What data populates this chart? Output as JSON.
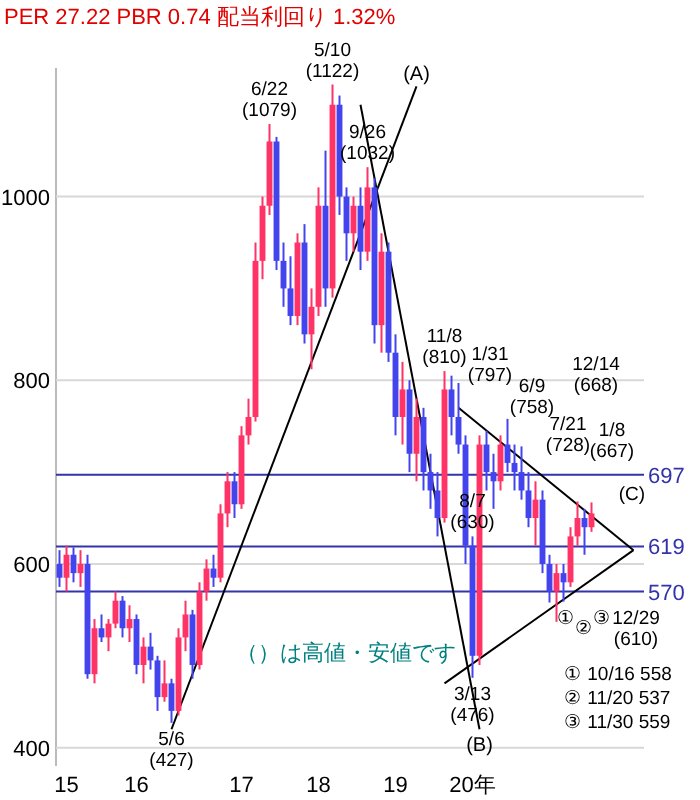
{
  "chart_data": {
    "type": "candlestick",
    "title": "PER 27.22 PBR 0.74 配当利回り 1.32%",
    "categories": [
      null,
      "15",
      null,
      null,
      null,
      null,
      null,
      null,
      null,
      null,
      null,
      "16",
      null,
      null,
      null,
      null,
      null,
      null,
      null,
      null,
      null,
      null,
      null,
      null,
      null,
      null,
      "17",
      null,
      null,
      null,
      null,
      null,
      null,
      null,
      null,
      null,
      null,
      "18",
      null,
      null,
      null,
      null,
      null,
      null,
      null,
      null,
      null,
      null,
      "19",
      null,
      null,
      null,
      null,
      null,
      null,
      null,
      null,
      null,
      null,
      "20年",
      null,
      null,
      null,
      null,
      null,
      null,
      null,
      null,
      null,
      null,
      null,
      null,
      null,
      null,
      null,
      null,
      null,
      null,
      null,
      null,
      null,
      null,
      null,
      null
    ],
    "ohlc": [
      [
        600,
        615,
        575,
        585
      ],
      [
        585,
        620,
        570,
        610
      ],
      [
        610,
        618,
        580,
        590
      ],
      [
        590,
        615,
        575,
        600
      ],
      [
        600,
        610,
        475,
        480
      ],
      [
        480,
        540,
        470,
        530
      ],
      [
        530,
        545,
        515,
        520
      ],
      [
        520,
        540,
        505,
        535
      ],
      [
        535,
        570,
        530,
        560
      ],
      [
        560,
        565,
        520,
        530
      ],
      [
        530,
        555,
        515,
        540
      ],
      [
        540,
        545,
        480,
        490
      ],
      [
        490,
        520,
        470,
        510
      ],
      [
        510,
        525,
        485,
        495
      ],
      [
        495,
        500,
        440,
        455
      ],
      [
        455,
        495,
        450,
        470
      ],
      [
        470,
        475,
        427,
        440
      ],
      [
        440,
        530,
        435,
        520
      ],
      [
        520,
        560,
        505,
        545
      ],
      [
        545,
        550,
        475,
        490
      ],
      [
        490,
        580,
        485,
        570
      ],
      [
        570,
        605,
        560,
        595
      ],
      [
        595,
        610,
        575,
        585
      ],
      [
        585,
        665,
        580,
        655
      ],
      [
        655,
        700,
        640,
        690
      ],
      [
        690,
        700,
        650,
        665
      ],
      [
        665,
        750,
        660,
        740
      ],
      [
        740,
        780,
        730,
        760
      ],
      [
        760,
        950,
        755,
        930
      ],
      [
        930,
        1000,
        910,
        990
      ],
      [
        990,
        1079,
        980,
        1060
      ],
      [
        1060,
        1065,
        920,
        930
      ],
      [
        930,
        950,
        880,
        900
      ],
      [
        900,
        935,
        860,
        870
      ],
      [
        870,
        960,
        860,
        950
      ],
      [
        950,
        970,
        840,
        850
      ],
      [
        850,
        900,
        812,
        880
      ],
      [
        880,
        1010,
        870,
        990
      ],
      [
        990,
        1050,
        880,
        900
      ],
      [
        900,
        1122,
        890,
        1100
      ],
      [
        1100,
        1110,
        980,
        1000
      ],
      [
        1000,
        1010,
        930,
        960
      ],
      [
        960,
        1000,
        940,
        990
      ],
      [
        990,
        1010,
        920,
        940
      ],
      [
        940,
        1032,
        930,
        1010
      ],
      [
        1010,
        1020,
        840,
        860
      ],
      [
        860,
        960,
        830,
        940
      ],
      [
        940,
        950,
        820,
        830
      ],
      [
        830,
        850,
        740,
        760
      ],
      [
        760,
        820,
        730,
        790
      ],
      [
        790,
        800,
        700,
        720
      ],
      [
        720,
        780,
        690,
        760
      ],
      [
        760,
        770,
        680,
        700
      ],
      [
        700,
        720,
        660,
        680
      ],
      [
        680,
        700,
        630,
        650
      ],
      [
        650,
        810,
        645,
        790
      ],
      [
        790,
        805,
        740,
        760
      ],
      [
        760,
        797,
        720,
        730
      ],
      [
        730,
        740,
        600,
        620
      ],
      [
        620,
        630,
        476,
        500
      ],
      [
        500,
        740,
        490,
        730
      ],
      [
        730,
        745,
        680,
        700
      ],
      [
        700,
        720,
        660,
        690
      ],
      [
        690,
        740,
        680,
        730
      ],
      [
        730,
        758,
        700,
        710
      ],
      [
        710,
        730,
        680,
        700
      ],
      [
        700,
        728,
        670,
        680
      ],
      [
        680,
        700,
        640,
        650
      ],
      [
        650,
        690,
        620,
        670
      ],
      [
        670,
        680,
        590,
        600
      ],
      [
        600,
        610,
        558,
        570
      ],
      [
        570,
        600,
        537,
        590
      ],
      [
        590,
        600,
        559,
        580
      ],
      [
        580,
        640,
        575,
        630
      ],
      [
        630,
        668,
        620,
        650
      ],
      [
        650,
        660,
        610,
        640
      ],
      [
        640,
        667,
        635,
        655
      ],
      null,
      null,
      null,
      null,
      null,
      null,
      null
    ],
    "colors": [
      "#4444ee",
      "#ff3366",
      "#4444ee",
      "#ff3366",
      "#4444ee",
      "#ff3366",
      "#4444ee",
      "#ff3366",
      "#ff3366",
      "#4444ee",
      "#ff3366",
      "#4444ee",
      "#ff3366",
      "#4444ee",
      "#4444ee",
      "#ff3366",
      "#4444ee",
      "#ff3366",
      "#ff3366",
      "#4444ee",
      "#ff3366",
      "#ff3366",
      "#4444ee",
      "#ff3366",
      "#ff3366",
      "#4444ee",
      "#ff3366",
      "#ff3366",
      "#ff3366",
      "#ff3366",
      "#ff3366",
      "#4444ee",
      "#4444ee",
      "#4444ee",
      "#ff3366",
      "#4444ee",
      "#ff3366",
      "#ff3366",
      "#4444ee",
      "#ff3366",
      "#4444ee",
      "#4444ee",
      "#ff3366",
      "#4444ee",
      "#ff3366",
      "#4444ee",
      "#ff3366",
      "#4444ee",
      "#4444ee",
      "#ff3366",
      "#4444ee",
      "#ff3366",
      "#4444ee",
      "#4444ee",
      "#4444ee",
      "#ff3366",
      "#4444ee",
      "#4444ee",
      "#4444ee",
      "#4444ee",
      "#ff3366",
      "#4444ee",
      "#4444ee",
      "#ff3366",
      "#4444ee",
      "#4444ee",
      "#4444ee",
      "#4444ee",
      "#ff3366",
      "#4444ee",
      "#4444ee",
      "#ff3366",
      "#4444ee",
      "#ff3366",
      "#ff3366",
      "#4444ee",
      "#ff3366",
      null,
      null,
      null,
      null,
      null,
      null,
      null
    ],
    "ylim": [
      380,
      1140
    ],
    "yticks": [
      400,
      600,
      800,
      1000
    ],
    "grid": "y",
    "series": [
      {
        "type": "line",
        "name": "(A)",
        "color": "#000000",
        "values": [
          null,
          null,
          null,
          null,
          null,
          null,
          null,
          null,
          null,
          null,
          null,
          null,
          null,
          null,
          null,
          null,
          420,
          null,
          null,
          null,
          null,
          null,
          null,
          null,
          null,
          null,
          null,
          null,
          null,
          null,
          null,
          null,
          null,
          null,
          null,
          null,
          null,
          null,
          null,
          null,
          null,
          null,
          null,
          null,
          null,
          null,
          null,
          null,
          null,
          null,
          null,
          1120,
          null,
          null,
          null,
          null,
          null,
          null,
          null,
          null,
          null,
          null,
          null,
          null,
          null,
          null,
          null,
          null,
          null,
          null,
          null,
          null,
          null,
          null,
          null,
          null,
          null,
          null,
          null,
          null,
          null,
          null,
          null,
          null
        ]
      },
      {
        "type": "line",
        "name": "(B)",
        "color": "#000000",
        "values": [
          null,
          null,
          null,
          null,
          null,
          null,
          null,
          null,
          null,
          null,
          null,
          null,
          null,
          null,
          null,
          null,
          null,
          null,
          null,
          null,
          null,
          null,
          null,
          null,
          null,
          null,
          null,
          null,
          null,
          null,
          null,
          null,
          null,
          null,
          null,
          null,
          null,
          null,
          null,
          null,
          null,
          null,
          null,
          1100,
          null,
          null,
          null,
          null,
          null,
          null,
          null,
          null,
          null,
          null,
          null,
          null,
          null,
          null,
          null,
          null,
          420,
          null,
          null,
          null,
          null,
          null,
          null,
          null,
          null,
          null,
          null,
          null,
          null,
          null,
          null,
          null,
          null,
          null,
          null,
          null,
          null,
          null,
          null,
          null
        ]
      },
      {
        "type": "line",
        "color": "#000000",
        "values": [
          null,
          null,
          null,
          null,
          null,
          null,
          null,
          null,
          null,
          null,
          null,
          null,
          null,
          null,
          null,
          null,
          null,
          null,
          null,
          null,
          null,
          null,
          null,
          null,
          null,
          null,
          null,
          null,
          null,
          null,
          null,
          null,
          null,
          null,
          null,
          null,
          null,
          null,
          null,
          null,
          null,
          null,
          null,
          null,
          null,
          null,
          null,
          null,
          null,
          null,
          null,
          null,
          null,
          null,
          null,
          null,
          null,
          770,
          null,
          null,
          null,
          null,
          null,
          null,
          null,
          null,
          null,
          null,
          null,
          null,
          null,
          null,
          null,
          null,
          null,
          null,
          null,
          null,
          null,
          null,
          null,
          null,
          615,
          null
        ]
      },
      {
        "type": "line",
        "color": "#000000",
        "values": [
          null,
          null,
          null,
          null,
          null,
          null,
          null,
          null,
          null,
          null,
          null,
          null,
          null,
          null,
          null,
          null,
          null,
          null,
          null,
          null,
          null,
          null,
          null,
          null,
          null,
          null,
          null,
          null,
          null,
          null,
          null,
          null,
          null,
          null,
          null,
          null,
          null,
          null,
          null,
          null,
          null,
          null,
          null,
          null,
          null,
          null,
          null,
          null,
          null,
          null,
          null,
          null,
          null,
          null,
          null,
          470,
          null,
          null,
          null,
          null,
          null,
          null,
          null,
          null,
          null,
          null,
          null,
          null,
          null,
          null,
          null,
          null,
          null,
          null,
          null,
          null,
          null,
          null,
          null,
          null,
          null,
          null,
          615,
          null
        ]
      }
    ],
    "ref_lines": [
      {
        "axis": "y",
        "value": 697,
        "label": "697",
        "color": "#3333aa"
      },
      {
        "axis": "y",
        "value": 619,
        "label": "619",
        "color": "#3333aa"
      },
      {
        "axis": "y",
        "value": 570,
        "label": "570",
        "color": "#3333aa"
      }
    ],
    "annotations": [
      {
        "text": "6/22\n(1079)",
        "y": 1079
      },
      {
        "text": "5/10\n(1122)",
        "y": 1122
      },
      {
        "text": "9/26\n(1032)",
        "y": 1032
      },
      {
        "text": "5/6\n(427)",
        "y": 427
      },
      {
        "text": "8/7\n(630)",
        "y": 630
      },
      {
        "text": "11/8\n(810)",
        "y": 810
      },
      {
        "text": "3/13\n(476)",
        "y": 476
      },
      "1/31\n(797)",
      "6/9\n(758)",
      "7/21\n(728)",
      "12/14\n(668)",
      "1/8\n(667)",
      "12/29\n(610)",
      "①",
      "②",
      "③",
      "(C)",
      "（）は高値・安値です",
      "① 10/16 558",
      "② 11/20 537",
      "③ 11/30 559"
    ]
  }
}
